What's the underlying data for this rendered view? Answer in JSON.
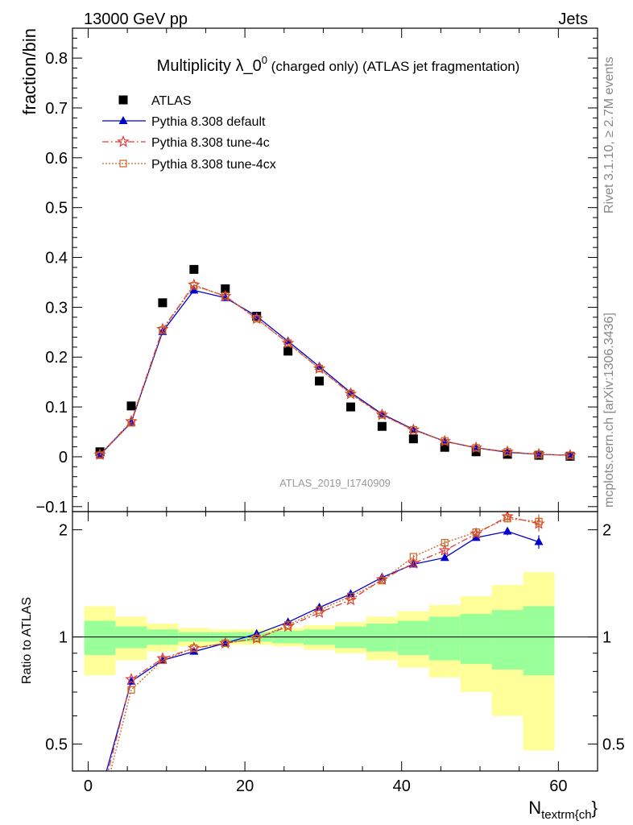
{
  "header": {
    "left": "13000 GeV pp",
    "right": "Jets"
  },
  "side_labels": {
    "rivet": "Rivet 3.1.10, ≥ 2.7M events",
    "mcplots": "mcplots.cern.ch [arXiv:1306.3436]"
  },
  "chart_data": {
    "type": "line",
    "title_main": "Multiplicity λ_0",
    "title_sup": "0",
    "title_rest": " (charged only) (ATLAS jet fragmentation)",
    "watermark": "ATLAS_2019_I1740909",
    "ylabel_top": "fraction/bin",
    "ylabel_bottom": "Ratio to ATLAS",
    "xlabel_main": "N",
    "xlabel_sub": "textrm{ch",
    "xlabel_end": "}",
    "xlim": [
      -2,
      65
    ],
    "ylim_top": [
      -0.11,
      0.86
    ],
    "ylim_bottom": [
      0.42,
      2.25
    ],
    "x_ticks": [
      0,
      20,
      40,
      60
    ],
    "y_ticks_top": [
      -0.1,
      0,
      0.1,
      0.2,
      0.3,
      0.4,
      0.5,
      0.6,
      0.7,
      0.8
    ],
    "y_tick_labels_top": [
      "−0.1",
      "0",
      "0.1",
      "0.2",
      "0.3",
      "0.4",
      "0.5",
      "0.6",
      "0.7",
      "0.8"
    ],
    "y_ticks_bottom": [
      0.5,
      1,
      2
    ],
    "y_tick_labels_bottom": [
      "0.5",
      "1",
      "2"
    ],
    "x": [
      1.5,
      5.5,
      9.5,
      13.5,
      17.5,
      21.5,
      25.5,
      29.5,
      33.5,
      37.5,
      41.5,
      45.5,
      49.5,
      53.5,
      57.5,
      61.5
    ],
    "bin_edges": [
      -0.5,
      3.5,
      7.5,
      11.5,
      15.5,
      19.5,
      23.5,
      27.5,
      31.5,
      35.5,
      39.5,
      43.5,
      47.5,
      51.5,
      55.5,
      59.5,
      63.5
    ],
    "series": [
      {
        "name": "ATLAS",
        "style": "data",
        "color": "#000000",
        "values": [
          0.01,
          0.102,
          0.309,
          0.376,
          0.337,
          0.282,
          0.212,
          0.152,
          0.1,
          0.061,
          0.036,
          0.019,
          0.01,
          0.005,
          0.003,
          0.001
        ]
      },
      {
        "name": "Pythia 8.308 default",
        "style": "solid",
        "marker": "triangle",
        "color": "#0000cc",
        "values": [
          0.004,
          0.069,
          0.251,
          0.334,
          0.319,
          0.282,
          0.232,
          0.181,
          0.129,
          0.086,
          0.055,
          0.031,
          0.018,
          0.009,
          0.005,
          0.003
        ],
        "ratio": [
          0.36,
          0.75,
          0.86,
          0.91,
          0.96,
          1.02,
          1.1,
          1.21,
          1.32,
          1.47,
          1.6,
          1.67,
          1.9,
          1.98,
          1.85,
          null
        ],
        "ratio_err": [
          0,
          0,
          0,
          0,
          0,
          0,
          0,
          0,
          0,
          0.01,
          0.02,
          0.03,
          0.03,
          0.05,
          0.08,
          0
        ]
      },
      {
        "name": "Pythia 8.308 tune-4c",
        "style": "dashdot",
        "marker": "star",
        "color": "#e03c3c",
        "values": [
          0.004,
          0.071,
          0.256,
          0.345,
          0.322,
          0.277,
          0.228,
          0.177,
          0.126,
          0.084,
          0.054,
          0.031,
          0.018,
          0.01,
          0.005,
          0.003
        ],
        "ratio": [
          0.34,
          0.76,
          0.87,
          0.93,
          0.96,
          0.99,
          1.07,
          1.17,
          1.27,
          1.45,
          1.61,
          1.75,
          1.95,
          2.18,
          2.08,
          null
        ],
        "ratio_err": [
          0,
          0,
          0,
          0,
          0,
          0,
          0,
          0,
          0,
          0.01,
          0.02,
          0.03,
          0.03,
          0.06,
          0.1,
          0
        ]
      },
      {
        "name": "Pythia 8.308 tune-4cx",
        "style": "dotted",
        "marker": "open-square",
        "color": "#c8641e",
        "values": [
          0.003,
          0.068,
          0.254,
          0.343,
          0.323,
          0.277,
          0.228,
          0.177,
          0.127,
          0.084,
          0.054,
          0.032,
          0.018,
          0.01,
          0.005,
          0.003
        ],
        "ratio": [
          0.32,
          0.71,
          0.86,
          0.93,
          0.96,
          0.99,
          1.08,
          1.19,
          1.3,
          1.44,
          1.68,
          1.84,
          1.97,
          2.15,
          2.11,
          null
        ],
        "ratio_err": [
          0,
          0,
          0,
          0,
          0,
          0,
          0,
          0,
          0,
          0.01,
          0.02,
          0.03,
          0.03,
          0.05,
          0.1,
          0
        ]
      }
    ],
    "bands": {
      "green_color": "#99ff99",
      "yellow_color": "#ffff99",
      "green_hw": [
        0.11,
        0.07,
        0.05,
        0.03,
        0.03,
        0.03,
        0.04,
        0.05,
        0.07,
        0.09,
        0.11,
        0.14,
        0.16,
        0.19,
        0.22,
        0
      ],
      "yellow_hw": [
        0.22,
        0.14,
        0.09,
        0.06,
        0.05,
        0.05,
        0.06,
        0.08,
        0.1,
        0.14,
        0.18,
        0.23,
        0.3,
        0.4,
        0.52,
        0
      ]
    }
  }
}
